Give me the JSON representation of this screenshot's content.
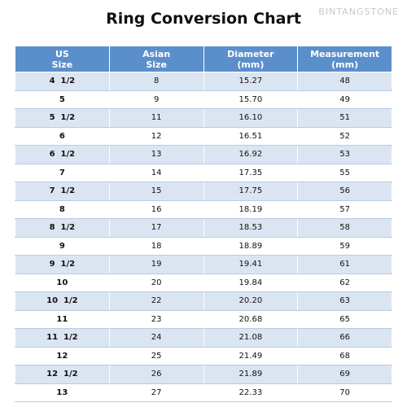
{
  "header": {
    "title": "Ring Conversion Chart",
    "watermark": "BINTANGSTONE"
  },
  "table": {
    "columns": [
      [
        "US",
        "Size"
      ],
      [
        "Asian",
        "Size"
      ],
      [
        "Diameter",
        "(mm)"
      ],
      [
        "Measurement",
        "(mm)"
      ]
    ],
    "rows": [
      [
        "4  1/2",
        "8",
        "15.27",
        "48"
      ],
      [
        "5",
        "9",
        "15.70",
        "49"
      ],
      [
        "5  1/2",
        "11",
        "16.10",
        "51"
      ],
      [
        "6",
        "12",
        "16.51",
        "52"
      ],
      [
        "6  1/2",
        "13",
        "16.92",
        "53"
      ],
      [
        "7",
        "14",
        "17.35",
        "55"
      ],
      [
        "7  1/2",
        "15",
        "17.75",
        "56"
      ],
      [
        "8",
        "16",
        "18.19",
        "57"
      ],
      [
        "8  1/2",
        "17",
        "18.53",
        "58"
      ],
      [
        "9",
        "18",
        "18.89",
        "59"
      ],
      [
        "9  1/2",
        "19",
        "19.41",
        "61"
      ],
      [
        "10",
        "20",
        "19.84",
        "62"
      ],
      [
        "10  1/2",
        "22",
        "20.20",
        "63"
      ],
      [
        "11",
        "23",
        "20.68",
        "65"
      ],
      [
        "11  1/2",
        "24",
        "21.08",
        "66"
      ],
      [
        "12",
        "25",
        "21.49",
        "68"
      ],
      [
        "12  1/2",
        "26",
        "21.89",
        "69"
      ],
      [
        "13",
        "27",
        "22.33",
        "70"
      ]
    ]
  }
}
